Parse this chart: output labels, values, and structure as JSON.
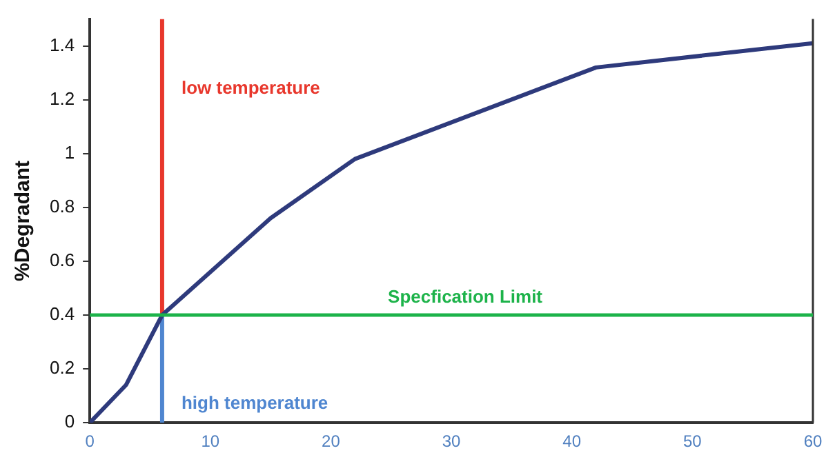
{
  "chart_data": {
    "type": "line",
    "ylabel": "%Degradant",
    "series": [
      {
        "color": "#2e3a7c",
        "x": [
          0,
          3,
          6,
          15,
          22,
          42,
          60
        ],
        "values": [
          0,
          0.14,
          0.4,
          0.76,
          0.98,
          1.32,
          1.41
        ]
      },
      {
        "color": "#e8372c",
        "x": [
          6,
          6
        ],
        "values": [
          0.4,
          1.5
        ]
      },
      {
        "color": "#4f86d0",
        "x": [
          6,
          6
        ],
        "values": [
          0,
          0.4
        ]
      }
    ],
    "ref_lines": [
      {
        "axis": "y",
        "value": 0.4,
        "label": "Specfication Limit",
        "color": "#1db34a"
      }
    ],
    "annotations": [
      {
        "text": "low temperature",
        "x": 6,
        "y": 1.24
      },
      {
        "text": "high temperature",
        "x": 6,
        "y": 0.07
      }
    ],
    "xlim": [
      0,
      60
    ],
    "xticks": [
      0,
      10,
      20,
      30,
      40,
      50,
      60
    ],
    "ylim": [
      0,
      1.5
    ],
    "yticks": [
      0,
      0.2,
      0.4,
      0.6,
      0.8,
      1,
      1.2,
      1.4
    ],
    "grid": false,
    "legend": false,
    "marker": "none",
    "line_style": "solid"
  }
}
